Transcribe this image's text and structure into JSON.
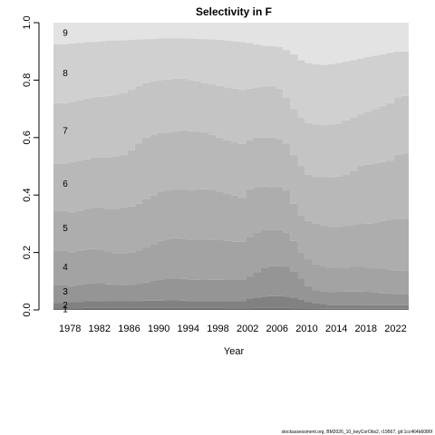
{
  "chart_data": {
    "type": "area",
    "title": "Selectivity in F",
    "xlabel": "Year",
    "ylabel": "",
    "xlim": [
      1977,
      2025
    ],
    "ylim": [
      0,
      1
    ],
    "x_ticks": [
      1978,
      1982,
      1986,
      1990,
      1994,
      1998,
      2002,
      2006,
      2010,
      2014,
      2018,
      2022
    ],
    "y_ticks": [
      "0.0",
      "0.2",
      "0.4",
      "0.6",
      "0.8",
      "1.0"
    ],
    "x": [
      1977,
      1978,
      1979,
      1980,
      1981,
      1982,
      1983,
      1984,
      1985,
      1986,
      1987,
      1988,
      1989,
      1990,
      1991,
      1992,
      1993,
      1994,
      1995,
      1996,
      1997,
      1998,
      1999,
      2000,
      2001,
      2002,
      2003,
      2004,
      2005,
      2006,
      2007,
      2008,
      2009,
      2010,
      2011,
      2012,
      2013,
      2014,
      2015,
      2016,
      2017,
      2018,
      2019,
      2020,
      2021,
      2022,
      2023,
      2024
    ],
    "series": [
      {
        "name": "1",
        "upper": [
          0.006,
          0.006,
          0.006,
          0.006,
          0.007,
          0.007,
          0.007,
          0.007,
          0.007,
          0.007,
          0.007,
          0.007,
          0.007,
          0.007,
          0.007,
          0.007,
          0.007,
          0.007,
          0.007,
          0.007,
          0.007,
          0.007,
          0.007,
          0.006,
          0.006,
          0.006,
          0.006,
          0.007,
          0.007,
          0.007,
          0.007,
          0.007,
          0.006,
          0.006,
          0.005,
          0.005,
          0.004,
          0.004,
          0.004,
          0.004,
          0.004,
          0.004,
          0.004,
          0.004,
          0.004,
          0.004,
          0.004,
          0.004
        ]
      },
      {
        "name": "2",
        "upper": [
          0.025,
          0.025,
          0.027,
          0.028,
          0.03,
          0.031,
          0.031,
          0.03,
          0.03,
          0.03,
          0.03,
          0.031,
          0.032,
          0.032,
          0.032,
          0.033,
          0.033,
          0.032,
          0.031,
          0.031,
          0.031,
          0.031,
          0.031,
          0.031,
          0.031,
          0.031,
          0.038,
          0.043,
          0.046,
          0.048,
          0.048,
          0.047,
          0.043,
          0.036,
          0.027,
          0.022,
          0.019,
          0.017,
          0.017,
          0.017,
          0.017,
          0.017,
          0.016,
          0.016,
          0.016,
          0.016,
          0.016,
          0.016
        ]
      },
      {
        "name": "3",
        "upper": [
          0.085,
          0.085,
          0.083,
          0.085,
          0.09,
          0.094,
          0.093,
          0.089,
          0.088,
          0.087,
          0.088,
          0.09,
          0.095,
          0.101,
          0.106,
          0.11,
          0.11,
          0.108,
          0.106,
          0.105,
          0.104,
          0.105,
          0.105,
          0.104,
          0.104,
          0.104,
          0.115,
          0.132,
          0.145,
          0.152,
          0.152,
          0.15,
          0.135,
          0.11,
          0.084,
          0.068,
          0.063,
          0.062,
          0.063,
          0.064,
          0.064,
          0.064,
          0.063,
          0.06,
          0.058,
          0.057,
          0.056,
          0.056
        ]
      },
      {
        "name": "4",
        "upper": [
          0.205,
          0.205,
          0.2,
          0.205,
          0.21,
          0.212,
          0.21,
          0.202,
          0.198,
          0.198,
          0.2,
          0.205,
          0.216,
          0.23,
          0.24,
          0.248,
          0.25,
          0.248,
          0.245,
          0.243,
          0.243,
          0.244,
          0.243,
          0.24,
          0.237,
          0.237,
          0.255,
          0.27,
          0.276,
          0.28,
          0.28,
          0.27,
          0.24,
          0.2,
          0.175,
          0.16,
          0.15,
          0.145,
          0.145,
          0.148,
          0.15,
          0.15,
          0.148,
          0.145,
          0.142,
          0.14,
          0.138,
          0.138
        ]
      },
      {
        "name": "5",
        "upper": [
          0.345,
          0.345,
          0.34,
          0.345,
          0.35,
          0.355,
          0.355,
          0.35,
          0.35,
          0.355,
          0.36,
          0.37,
          0.385,
          0.4,
          0.41,
          0.415,
          0.418,
          0.418,
          0.415,
          0.418,
          0.42,
          0.418,
          0.412,
          0.405,
          0.398,
          0.39,
          0.42,
          0.428,
          0.43,
          0.428,
          0.428,
          0.415,
          0.37,
          0.33,
          0.31,
          0.3,
          0.292,
          0.29,
          0.29,
          0.292,
          0.295,
          0.298,
          0.3,
          0.305,
          0.31,
          0.315,
          0.318,
          0.318
        ]
      },
      {
        "name": "6",
        "upper": [
          0.51,
          0.51,
          0.515,
          0.52,
          0.525,
          0.53,
          0.53,
          0.53,
          0.535,
          0.54,
          0.555,
          0.58,
          0.6,
          0.61,
          0.615,
          0.615,
          0.62,
          0.625,
          0.622,
          0.62,
          0.618,
          0.61,
          0.6,
          0.59,
          0.582,
          0.578,
          0.59,
          0.6,
          0.6,
          0.6,
          0.595,
          0.58,
          0.54,
          0.5,
          0.47,
          0.462,
          0.462,
          0.463,
          0.465,
          0.47,
          0.485,
          0.5,
          0.505,
          0.51,
          0.515,
          0.52,
          0.54,
          0.545
        ]
      },
      {
        "name": "7",
        "upper": [
          0.72,
          0.72,
          0.725,
          0.73,
          0.735,
          0.74,
          0.742,
          0.745,
          0.75,
          0.755,
          0.765,
          0.78,
          0.79,
          0.795,
          0.8,
          0.802,
          0.805,
          0.805,
          0.8,
          0.795,
          0.79,
          0.785,
          0.78,
          0.775,
          0.77,
          0.766,
          0.77,
          0.775,
          0.778,
          0.78,
          0.77,
          0.74,
          0.7,
          0.67,
          0.65,
          0.645,
          0.642,
          0.645,
          0.648,
          0.66,
          0.67,
          0.68,
          0.69,
          0.7,
          0.71,
          0.72,
          0.74,
          0.745
        ]
      },
      {
        "name": "8",
        "upper": [
          0.925,
          0.925,
          0.928,
          0.93,
          0.932,
          0.933,
          0.935,
          0.937,
          0.938,
          0.939,
          0.94,
          0.942,
          0.943,
          0.944,
          0.945,
          0.946,
          0.946,
          0.946,
          0.945,
          0.944,
          0.943,
          0.942,
          0.94,
          0.938,
          0.935,
          0.933,
          0.93,
          0.925,
          0.92,
          0.918,
          0.915,
          0.905,
          0.89,
          0.87,
          0.86,
          0.855,
          0.853,
          0.855,
          0.86,
          0.865,
          0.87,
          0.875,
          0.88,
          0.885,
          0.89,
          0.895,
          0.9,
          0.9
        ]
      },
      {
        "name": "9",
        "upper": [
          1,
          1,
          1,
          1,
          1,
          1,
          1,
          1,
          1,
          1,
          1,
          1,
          1,
          1,
          1,
          1,
          1,
          1,
          1,
          1,
          1,
          1,
          1,
          1,
          1,
          1,
          1,
          1,
          1,
          1,
          1,
          1,
          1,
          1,
          1,
          1,
          1,
          1,
          1,
          1,
          1,
          1,
          1,
          1,
          1,
          1,
          1,
          1
        ]
      }
    ],
    "colors": [
      "#6e6e6e",
      "#818181",
      "#959595",
      "#a3a3a3",
      "#adadad",
      "#b8b8b8",
      "#c4c4c4",
      "#d0d0d0",
      "#e3e3e3"
    ],
    "label_positions_data": [
      0.003,
      0.018,
      0.065,
      0.15,
      0.285,
      0.44,
      0.625,
      0.825,
      0.965
    ]
  },
  "footer_text": "stockassessment.org, BM2026_10_keyCorObs2, r19567, git:1cc464b6086f"
}
